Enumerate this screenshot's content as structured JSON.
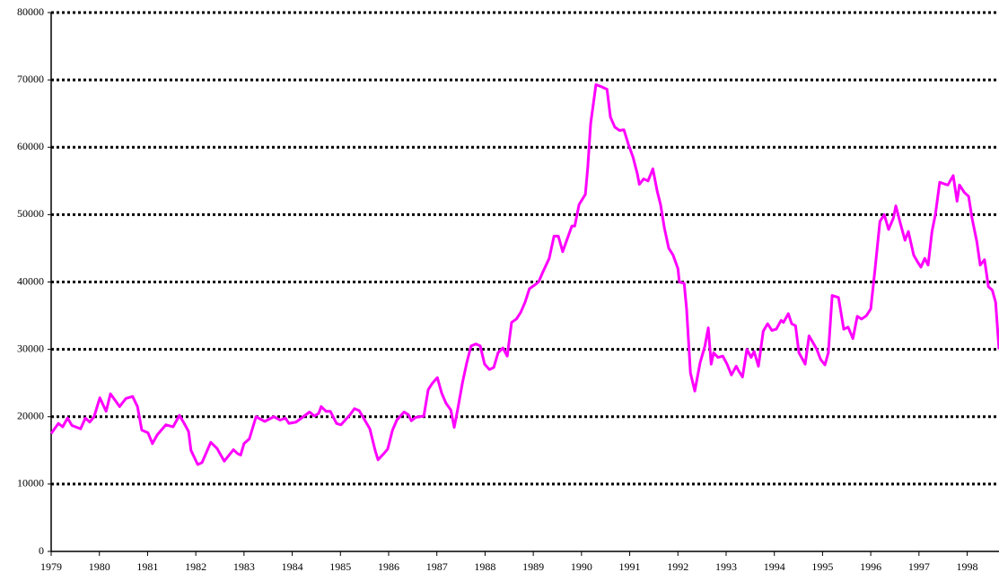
{
  "chart_data": {
    "type": "line",
    "color": "#ff00ff",
    "grid": true,
    "xlim": [
      1979,
      1998.66
    ],
    "ylim": [
      0,
      80000
    ],
    "xticks": [
      1979,
      1980,
      1981,
      1982,
      1983,
      1984,
      1985,
      1986,
      1987,
      1988,
      1989,
      1990,
      1991,
      1992,
      1993,
      1994,
      1995,
      1996,
      1997,
      1998
    ],
    "yticks": [
      0,
      10000,
      20000,
      30000,
      40000,
      50000,
      60000,
      70000,
      80000
    ],
    "x": [
      1979.0,
      1979.15,
      1979.24,
      1979.34,
      1979.43,
      1979.61,
      1979.71,
      1979.8,
      1979.89,
      1980.01,
      1980.14,
      1980.23,
      1980.42,
      1980.55,
      1980.69,
      1980.79,
      1980.88,
      1981.01,
      1981.1,
      1981.2,
      1981.38,
      1981.53,
      1981.66,
      1981.76,
      1981.85,
      1981.9,
      1982.04,
      1982.13,
      1982.31,
      1982.44,
      1982.59,
      1982.78,
      1982.87,
      1982.93,
      1983.0,
      1983.11,
      1983.25,
      1983.43,
      1983.62,
      1983.75,
      1983.86,
      1983.93,
      1984.08,
      1984.23,
      1984.36,
      1984.46,
      1984.55,
      1984.6,
      1984.7,
      1984.79,
      1984.92,
      1985.01,
      1985.2,
      1985.29,
      1985.39,
      1985.48,
      1985.61,
      1985.72,
      1985.78,
      1985.91,
      1985.98,
      1986.08,
      1986.17,
      1986.32,
      1986.41,
      1986.47,
      1986.56,
      1986.73,
      1986.82,
      1986.91,
      1987.01,
      1987.1,
      1987.19,
      1987.29,
      1987.36,
      1987.43,
      1987.53,
      1987.62,
      1987.71,
      1987.81,
      1987.9,
      1987.99,
      1988.09,
      1988.18,
      1988.27,
      1988.37,
      1988.46,
      1988.55,
      1988.65,
      1988.74,
      1988.83,
      1988.92,
      1989.02,
      1989.11,
      1989.2,
      1989.33,
      1989.43,
      1989.52,
      1989.61,
      1989.71,
      1989.8,
      1989.86,
      1989.95,
      1990.08,
      1990.13,
      1990.19,
      1990.3,
      1990.41,
      1990.53,
      1990.6,
      1990.69,
      1990.79,
      1990.88,
      1990.97,
      1991.07,
      1991.16,
      1991.2,
      1991.29,
      1991.38,
      1991.48,
      1991.57,
      1991.64,
      1991.72,
      1991.81,
      1991.9,
      1992.0,
      1992.03,
      1992.13,
      1992.18,
      1992.26,
      1992.35,
      1992.46,
      1992.56,
      1992.63,
      1992.69,
      1992.74,
      1992.83,
      1992.93,
      1993.02,
      1993.11,
      1993.21,
      1993.26,
      1993.34,
      1993.43,
      1993.52,
      1993.58,
      1993.67,
      1993.77,
      1993.86,
      1993.95,
      1994.04,
      1994.14,
      1994.19,
      1994.29,
      1994.36,
      1994.44,
      1994.51,
      1994.64,
      1994.72,
      1994.81,
      1994.88,
      1994.96,
      1995.05,
      1995.12,
      1995.2,
      1995.33,
      1995.44,
      1995.53,
      1995.63,
      1995.72,
      1995.81,
      1995.91,
      1996.0,
      1996.09,
      1996.19,
      1996.28,
      1996.37,
      1996.47,
      1996.52,
      1996.61,
      1996.71,
      1996.78,
      1996.89,
      1996.97,
      1997.04,
      1997.12,
      1997.19,
      1997.27,
      1997.34,
      1997.43,
      1997.55,
      1997.6,
      1997.71,
      1997.79,
      1997.84,
      1997.94,
      1998.03,
      1998.1,
      1998.2,
      1998.27,
      1998.36,
      1998.44,
      1998.52,
      1998.59,
      1998.66
    ],
    "values": [
      17500,
      19000,
      18500,
      19800,
      18700,
      18200,
      19800,
      19200,
      20000,
      22800,
      20800,
      23400,
      21500,
      22700,
      23000,
      21500,
      18000,
      17600,
      16000,
      17300,
      18800,
      18500,
      20200,
      19000,
      17800,
      15000,
      12900,
      13200,
      16200,
      15300,
      13400,
      15100,
      14500,
      14300,
      16000,
      16700,
      20000,
      19300,
      20000,
      19500,
      19800,
      19000,
      19200,
      20000,
      20700,
      20100,
      20500,
      21500,
      20800,
      20800,
      19000,
      18800,
      20300,
      21200,
      20900,
      19800,
      18200,
      15000,
      13600,
      14600,
      15200,
      18000,
      19500,
      20700,
      20300,
      19400,
      19900,
      20100,
      24000,
      25000,
      25800,
      23500,
      22000,
      21000,
      18400,
      21000,
      25000,
      28000,
      30500,
      30800,
      30500,
      27800,
      27000,
      27300,
      29500,
      30200,
      29000,
      34000,
      34500,
      35500,
      37000,
      39000,
      39500,
      40000,
      41500,
      43500,
      46800,
      46800,
      44500,
      46500,
      48300,
      48300,
      51500,
      53000,
      57000,
      63500,
      69300,
      69000,
      68600,
      64500,
      63000,
      62500,
      62600,
      60500,
      58500,
      56000,
      54500,
      55300,
      55000,
      56800,
      53500,
      51500,
      48000,
      45000,
      44000,
      42000,
      40000,
      39800,
      36000,
      26500,
      23800,
      28000,
      30500,
      33200,
      27800,
      29500,
      28800,
      29000,
      27800,
      26200,
      27500,
      26800,
      25900,
      30000,
      28800,
      29700,
      27500,
      32700,
      33800,
      32800,
      33000,
      34300,
      34000,
      35300,
      33800,
      33500,
      29500,
      27800,
      32000,
      30900,
      30000,
      28500,
      27700,
      29500,
      38000,
      37700,
      33000,
      33300,
      31600,
      34900,
      34500,
      35000,
      36000,
      42000,
      49000,
      50000,
      47800,
      49500,
      51300,
      48800,
      46200,
      47500,
      44000,
      43000,
      42200,
      43500,
      42500,
      47500,
      50000,
      54800,
      54500,
      54400,
      55800,
      52000,
      54400,
      53300,
      52700,
      49500,
      46000,
      42500,
      43300,
      39300,
      38800,
      37000,
      30000
    ]
  }
}
